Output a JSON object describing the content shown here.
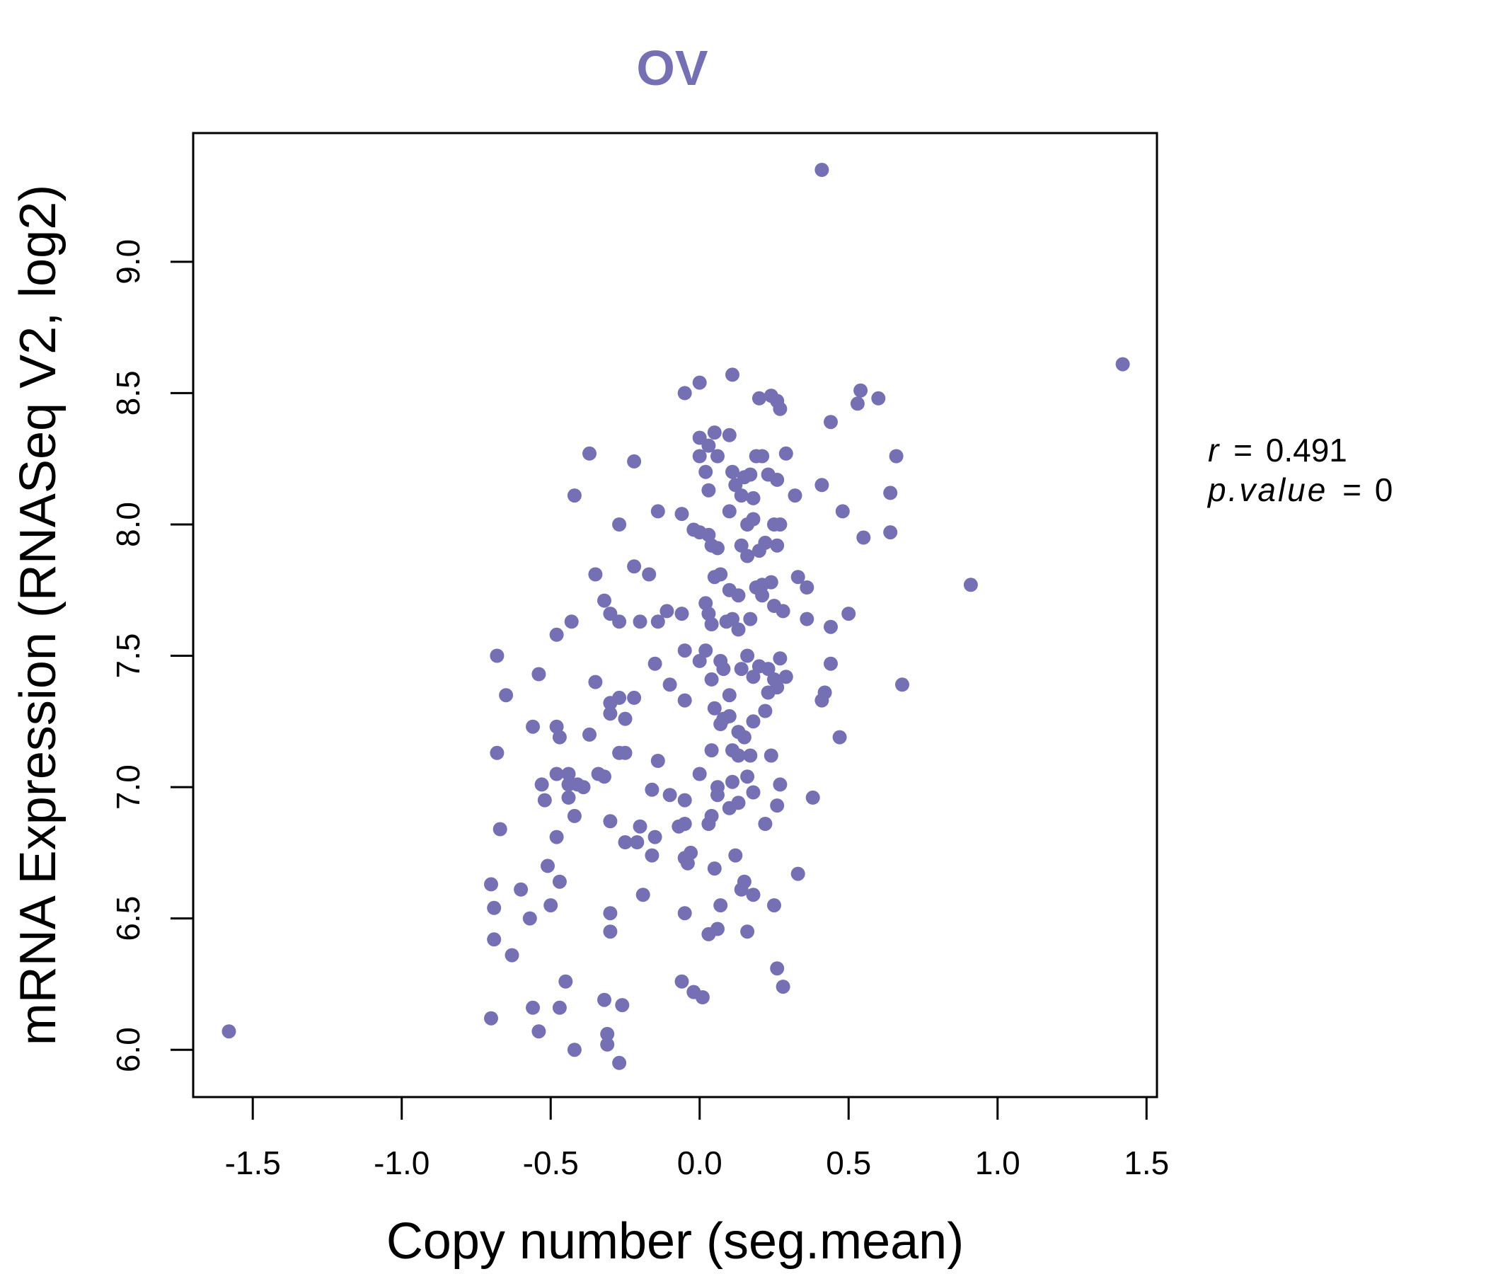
{
  "chart_data": {
    "type": "scatter",
    "title": "OV",
    "xlabel": "Copy number (seg.mean)",
    "ylabel": "mRNA Expression (RNASeq V2, log2)",
    "xlim": [
      -1.7,
      1.535
    ],
    "ylim": [
      5.82,
      9.49
    ],
    "xticks": [
      -1.5,
      -1.0,
      -0.5,
      0.0,
      0.5,
      1.0,
      1.5
    ],
    "xtick_labels": [
      "-1.5",
      "-1.0",
      "-0.5",
      "0.0",
      "0.5",
      "1.0",
      "1.5"
    ],
    "yticks": [
      6.0,
      6.5,
      7.0,
      7.5,
      8.0,
      8.5,
      9.0
    ],
    "ytick_labels": [
      "6.0",
      "6.5",
      "7.0",
      "7.5",
      "8.0",
      "8.5",
      "9.0"
    ],
    "point_color": "#7570B3",
    "stats": {
      "r_symbol": "r",
      "r_value": "0.491",
      "p_symbol": "p.value",
      "p_value": "0"
    },
    "points": [
      [
        0.41,
        9.35
      ],
      [
        1.42,
        8.61
      ],
      [
        -1.58,
        6.07
      ],
      [
        0.91,
        7.77
      ],
      [
        0.68,
        7.39
      ],
      [
        0.11,
        8.57
      ],
      [
        0.0,
        8.54
      ],
      [
        -0.05,
        8.5
      ],
      [
        0.2,
        8.48
      ],
      [
        0.24,
        8.49
      ],
      [
        0.26,
        8.47
      ],
      [
        0.27,
        8.44
      ],
      [
        0.54,
        8.51
      ],
      [
        0.6,
        8.48
      ],
      [
        0.53,
        8.46
      ],
      [
        0.44,
        8.39
      ],
      [
        0.05,
        8.35
      ],
      [
        0.1,
        8.34
      ],
      [
        0.0,
        8.33
      ],
      [
        0.03,
        8.3
      ],
      [
        -0.37,
        8.27
      ],
      [
        0.0,
        8.26
      ],
      [
        0.06,
        8.26
      ],
      [
        0.19,
        8.26
      ],
      [
        0.21,
        8.26
      ],
      [
        0.29,
        8.27
      ],
      [
        0.66,
        8.26
      ],
      [
        -0.22,
        8.24
      ],
      [
        0.02,
        8.2
      ],
      [
        0.11,
        8.2
      ],
      [
        0.15,
        8.18
      ],
      [
        0.23,
        8.19
      ],
      [
        0.26,
        8.17
      ],
      [
        0.17,
        8.19
      ],
      [
        -0.42,
        8.11
      ],
      [
        0.03,
        8.13
      ],
      [
        0.12,
        8.15
      ],
      [
        0.14,
        8.11
      ],
      [
        0.18,
        8.1
      ],
      [
        0.32,
        8.11
      ],
      [
        0.41,
        8.15
      ],
      [
        0.64,
        8.12
      ],
      [
        -0.27,
        8.0
      ],
      [
        -0.14,
        8.05
      ],
      [
        -0.06,
        8.04
      ],
      [
        0.1,
        8.05
      ],
      [
        0.16,
        8.0
      ],
      [
        0.18,
        8.02
      ],
      [
        0.25,
        8.0
      ],
      [
        0.27,
        8.0
      ],
      [
        0.48,
        8.05
      ],
      [
        -0.02,
        7.98
      ],
      [
        0.0,
        7.97
      ],
      [
        0.03,
        7.96
      ],
      [
        0.04,
        7.92
      ],
      [
        0.06,
        7.91
      ],
      [
        0.14,
        7.92
      ],
      [
        0.16,
        7.88
      ],
      [
        0.2,
        7.9
      ],
      [
        0.22,
        7.93
      ],
      [
        0.26,
        7.92
      ],
      [
        0.55,
        7.95
      ],
      [
        0.64,
        7.97
      ],
      [
        -0.22,
        7.84
      ],
      [
        -0.17,
        7.81
      ],
      [
        -0.35,
        7.81
      ],
      [
        0.05,
        7.8
      ],
      [
        0.07,
        7.81
      ],
      [
        0.1,
        7.75
      ],
      [
        0.13,
        7.73
      ],
      [
        0.19,
        7.76
      ],
      [
        0.21,
        7.77
      ],
      [
        0.24,
        7.78
      ],
      [
        0.33,
        7.8
      ],
      [
        0.36,
        7.76
      ],
      [
        -0.32,
        7.71
      ],
      [
        -0.3,
        7.66
      ],
      [
        -0.27,
        7.63
      ],
      [
        -0.2,
        7.63
      ],
      [
        -0.14,
        7.63
      ],
      [
        -0.11,
        7.67
      ],
      [
        -0.06,
        7.66
      ],
      [
        0.02,
        7.7
      ],
      [
        0.03,
        7.66
      ],
      [
        0.04,
        7.62
      ],
      [
        0.09,
        7.63
      ],
      [
        0.11,
        7.64
      ],
      [
        0.13,
        7.6
      ],
      [
        0.17,
        7.64
      ],
      [
        0.21,
        7.73
      ],
      [
        0.25,
        7.69
      ],
      [
        0.28,
        7.67
      ],
      [
        0.36,
        7.64
      ],
      [
        0.44,
        7.61
      ],
      [
        0.5,
        7.66
      ],
      [
        -0.43,
        7.63
      ],
      [
        -0.48,
        7.58
      ],
      [
        -0.68,
        7.5
      ],
      [
        -0.54,
        7.43
      ],
      [
        -0.35,
        7.4
      ],
      [
        -0.15,
        7.47
      ],
      [
        -0.1,
        7.39
      ],
      [
        -0.05,
        7.52
      ],
      [
        0.0,
        7.48
      ],
      [
        0.02,
        7.52
      ],
      [
        0.04,
        7.41
      ],
      [
        0.07,
        7.48
      ],
      [
        0.08,
        7.45
      ],
      [
        0.1,
        7.35
      ],
      [
        0.14,
        7.45
      ],
      [
        0.16,
        7.5
      ],
      [
        0.18,
        7.42
      ],
      [
        0.2,
        7.46
      ],
      [
        0.23,
        7.45
      ],
      [
        0.25,
        7.41
      ],
      [
        0.26,
        7.38
      ],
      [
        0.27,
        7.49
      ],
      [
        0.29,
        7.42
      ],
      [
        0.42,
        7.36
      ],
      [
        0.44,
        7.47
      ],
      [
        -0.65,
        7.35
      ],
      [
        -0.3,
        7.32
      ],
      [
        -0.27,
        7.34
      ],
      [
        -0.22,
        7.34
      ],
      [
        -0.05,
        7.33
      ],
      [
        0.05,
        7.3
      ],
      [
        0.08,
        7.26
      ],
      [
        0.1,
        7.27
      ],
      [
        0.13,
        7.21
      ],
      [
        0.18,
        7.25
      ],
      [
        0.22,
        7.29
      ],
      [
        0.23,
        7.36
      ],
      [
        0.41,
        7.33
      ],
      [
        0.47,
        7.19
      ],
      [
        -0.56,
        7.23
      ],
      [
        -0.48,
        7.23
      ],
      [
        -0.47,
        7.19
      ],
      [
        -0.37,
        7.2
      ],
      [
        -0.3,
        7.28
      ],
      [
        -0.25,
        7.26
      ],
      [
        0.04,
        7.14
      ],
      [
        0.07,
        7.24
      ],
      [
        0.11,
        7.14
      ],
      [
        0.13,
        7.12
      ],
      [
        0.15,
        7.19
      ],
      [
        0.17,
        7.12
      ],
      [
        0.24,
        7.12
      ],
      [
        -0.68,
        7.13
      ],
      [
        -0.48,
        7.05
      ],
      [
        -0.44,
        7.05
      ],
      [
        -0.34,
        7.05
      ],
      [
        -0.27,
        7.13
      ],
      [
        -0.25,
        7.13
      ],
      [
        -0.14,
        7.1
      ],
      [
        -0.53,
        7.01
      ],
      [
        -0.44,
        7.01
      ],
      [
        -0.41,
        7.01
      ],
      [
        -0.39,
        7.0
      ],
      [
        -0.32,
        7.04
      ],
      [
        0.0,
        7.05
      ],
      [
        0.06,
        7.0
      ],
      [
        0.11,
        7.02
      ],
      [
        0.16,
        7.04
      ],
      [
        0.18,
        6.98
      ],
      [
        0.27,
        7.01
      ],
      [
        -0.16,
        6.99
      ],
      [
        -0.1,
        6.97
      ],
      [
        -0.05,
        6.95
      ],
      [
        0.06,
        6.97
      ],
      [
        0.13,
        6.94
      ],
      [
        0.38,
        6.96
      ],
      [
        -0.52,
        6.95
      ],
      [
        -0.44,
        6.96
      ],
      [
        -0.42,
        6.89
      ],
      [
        -0.3,
        6.87
      ],
      [
        -0.2,
        6.85
      ],
      [
        -0.07,
        6.85
      ],
      [
        -0.05,
        6.86
      ],
      [
        0.03,
        6.86
      ],
      [
        0.04,
        6.89
      ],
      [
        0.1,
        6.92
      ],
      [
        0.22,
        6.86
      ],
      [
        0.26,
        6.93
      ],
      [
        -0.67,
        6.84
      ],
      [
        -0.48,
        6.81
      ],
      [
        -0.25,
        6.79
      ],
      [
        -0.21,
        6.79
      ],
      [
        -0.15,
        6.81
      ],
      [
        -0.16,
        6.74
      ],
      [
        -0.05,
        6.73
      ],
      [
        -0.03,
        6.75
      ],
      [
        -0.04,
        6.71
      ],
      [
        0.05,
        6.69
      ],
      [
        0.12,
        6.74
      ],
      [
        -0.51,
        6.7
      ],
      [
        -0.47,
        6.64
      ],
      [
        -0.7,
        6.63
      ],
      [
        -0.6,
        6.61
      ],
      [
        -0.5,
        6.55
      ],
      [
        0.15,
        6.64
      ],
      [
        0.14,
        6.61
      ],
      [
        0.18,
        6.59
      ],
      [
        0.33,
        6.67
      ],
      [
        -0.69,
        6.54
      ],
      [
        -0.57,
        6.5
      ],
      [
        -0.3,
        6.52
      ],
      [
        -0.19,
        6.59
      ],
      [
        -0.05,
        6.52
      ],
      [
        0.07,
        6.55
      ],
      [
        0.25,
        6.55
      ],
      [
        -0.69,
        6.42
      ],
      [
        -0.63,
        6.36
      ],
      [
        -0.3,
        6.45
      ],
      [
        0.03,
        6.44
      ],
      [
        0.06,
        6.46
      ],
      [
        0.16,
        6.45
      ],
      [
        0.26,
        6.31
      ],
      [
        -0.45,
        6.26
      ],
      [
        -0.06,
        6.26
      ],
      [
        -0.02,
        6.22
      ],
      [
        0.01,
        6.2
      ],
      [
        0.28,
        6.24
      ],
      [
        -0.32,
        6.19
      ],
      [
        -0.26,
        6.17
      ],
      [
        -0.7,
        6.12
      ],
      [
        -0.56,
        6.16
      ],
      [
        -0.47,
        6.16
      ],
      [
        -0.54,
        6.07
      ],
      [
        -0.31,
        6.06
      ],
      [
        -0.42,
        6.0
      ],
      [
        -0.31,
        6.02
      ],
      [
        -0.27,
        5.95
      ]
    ]
  }
}
